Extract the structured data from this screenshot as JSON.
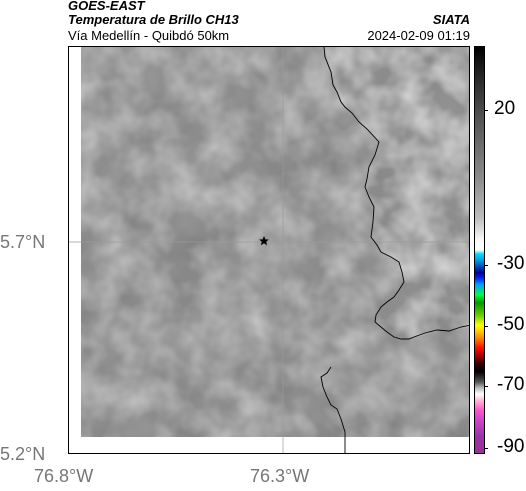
{
  "header": {
    "satellite": "GOES-EAST",
    "product": "Temperatura de Brillo CH13",
    "route": "Vía Medellín - Quibdó 50km",
    "agency": "SIATA",
    "datetime": "2024-02-09 01:19"
  },
  "map": {
    "lat_ticks": [
      "5.7°N",
      "5.2°N"
    ],
    "lon_ticks": [
      "76.8°W",
      "76.3°W"
    ],
    "marker_icon": "star-icon",
    "colors": {
      "cloud_gray": "#7a7a7a",
      "coastline": "#000000",
      "gridline": "#9a9a9a"
    }
  },
  "colorbar": {
    "labels": [
      "20",
      "-30",
      "-50",
      "-70",
      "-90"
    ]
  }
}
